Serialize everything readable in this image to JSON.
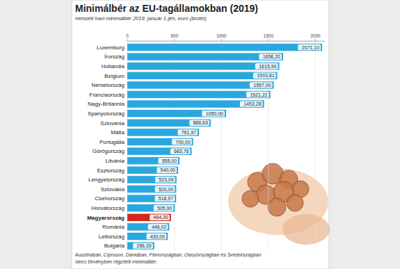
{
  "chart_data": {
    "type": "bar",
    "orientation": "horizontal",
    "title": "Minimálbér az EU-tagállamokban (2019)",
    "subtitle": "nemzeti havi minimálbér 2019. január 1-jén, euró (bruttó)",
    "categories": [
      "Luxemburg",
      "Írország",
      "Hollandia",
      "Belgium",
      "Németország",
      "Franciaország",
      "Nagy-Britannia",
      "Spanyolország",
      "Szlovénia",
      "Málta",
      "Portugália",
      "Görögország",
      "Litvánia",
      "Észtország",
      "Lengyelország",
      "Szlovákia",
      "Csehország",
      "Horvátország",
      "Magyarország",
      "Románia",
      "Lettország",
      "Bulgária"
    ],
    "values": [
      2071.1,
      1656.2,
      1615.9,
      1593.81,
      1557,
      1521.22,
      1453.28,
      1050,
      886.63,
      761.97,
      700,
      683.76,
      555,
      540,
      523.09,
      520,
      518.97,
      505.9,
      464.2,
      446.02,
      430,
      286.33
    ],
    "value_labels": [
      "2071,10",
      "1656,20",
      "1615,90",
      "1593,81",
      "1557,00",
      "1521,22",
      "1453,28",
      "1050,00",
      "886,63",
      "761,97",
      "700,00",
      "683,76",
      "555,00",
      "540,00",
      "523,09",
      "520,00",
      "518,97",
      "505,90",
      "464,20",
      "446,02",
      "430,00",
      "286,33"
    ],
    "colors": [
      "#2aa7df",
      "#2aa7df",
      "#2aa7df",
      "#2aa7df",
      "#2aa7df",
      "#2aa7df",
      "#2aa7df",
      "#2aa7df",
      "#2aa7df",
      "#2aa7df",
      "#2aa7df",
      "#2aa7df",
      "#2aa7df",
      "#2aa7df",
      "#2aa7df",
      "#2aa7df",
      "#2aa7df",
      "#2aa7df",
      "#d8261f",
      "#2aa7df",
      "#2aa7df",
      "#2aa7df"
    ],
    "xlim": [
      0,
      2100
    ],
    "xticks": [
      0,
      500,
      1000,
      1500,
      2000
    ],
    "grid": true,
    "data_labels": true,
    "note": [
      "Ausztriában, Cipruson, Dániában, Finnországban, Olaszországban és Svédországban",
      "nincs törvényben rögzített minimálbér."
    ]
  }
}
